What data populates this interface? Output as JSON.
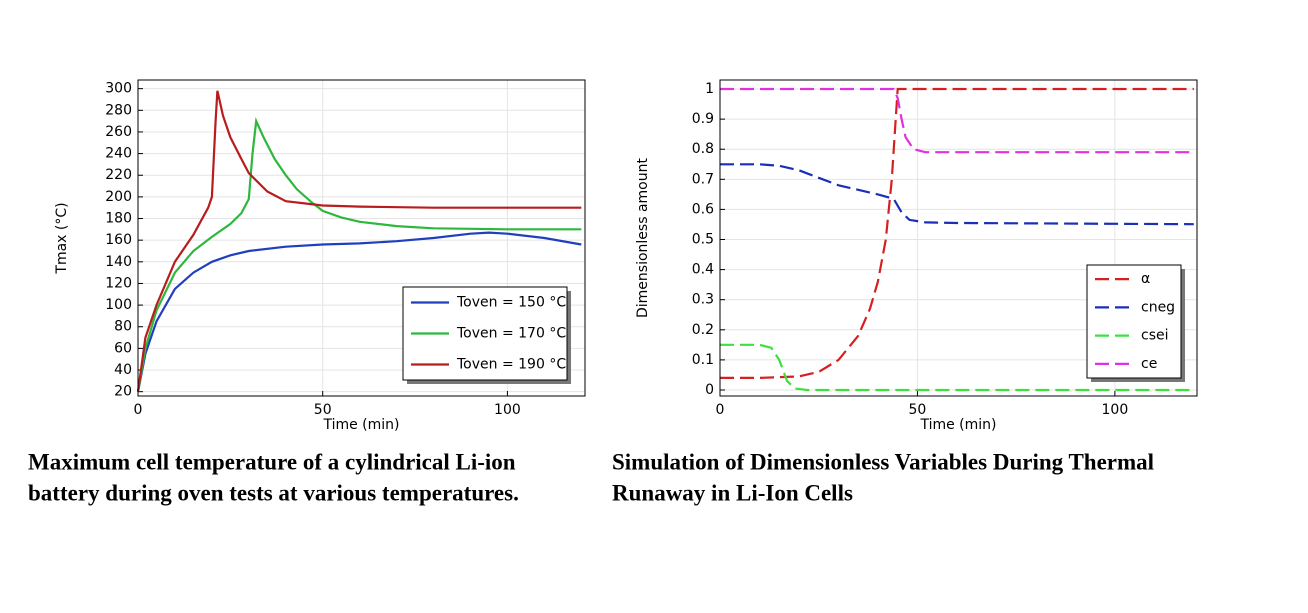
{
  "chart_data": [
    {
      "type": "line",
      "ylabel": "Tmax (°C)",
      "xlabel": "Time (min)",
      "caption": [
        "Maximum cell temperature of a cylindrical Li-ion",
        "battery during oven tests at various temperatures."
      ],
      "xlim": [
        0,
        121
      ],
      "xticks": [
        0,
        50,
        100
      ],
      "ylim": [
        16,
        308
      ],
      "yticks": [
        20,
        40,
        60,
        80,
        100,
        120,
        140,
        160,
        180,
        200,
        220,
        240,
        260,
        280,
        300
      ],
      "grid": true,
      "dashed": false,
      "legend": "lower right",
      "series": [
        {
          "name": "Toven = 150 °C",
          "color": "#1f3fbf",
          "x": [
            0,
            2,
            5,
            10,
            15,
            20,
            25,
            30,
            40,
            50,
            60,
            70,
            80,
            90,
            95,
            100,
            110,
            120
          ],
          "values": [
            20,
            55,
            85,
            115,
            130,
            140,
            146,
            150,
            154,
            156,
            157,
            159,
            162,
            166,
            167,
            166,
            162,
            156
          ]
        },
        {
          "name": "Toven = 170 °C",
          "color": "#2db83d",
          "x": [
            0,
            2,
            5,
            10,
            15,
            20,
            25,
            28,
            30,
            31,
            32,
            34,
            37,
            40,
            43,
            47,
            50,
            55,
            60,
            70,
            80,
            100,
            120
          ],
          "values": [
            20,
            60,
            95,
            130,
            150,
            163,
            175,
            185,
            198,
            240,
            270,
            255,
            235,
            220,
            207,
            195,
            187,
            181,
            177,
            173,
            171,
            170,
            170
          ]
        },
        {
          "name": "Toven = 190 °C",
          "color": "#b81c1c",
          "x": [
            0,
            2,
            5,
            10,
            15,
            19,
            20,
            21,
            21.5,
            23,
            25,
            28,
            30,
            35,
            40,
            50,
            60,
            80,
            120
          ],
          "values": [
            20,
            70,
            100,
            140,
            165,
            190,
            200,
            270,
            298,
            275,
            255,
            235,
            222,
            205,
            196,
            192,
            191,
            190,
            190
          ]
        }
      ]
    },
    {
      "type": "line",
      "ylabel": "Dimensionless amount",
      "xlabel": "Time (min)",
      "caption": [
        "Simulation of Dimensionless Variables During Thermal",
        "Runaway in Li-Ion Cells"
      ],
      "xlim": [
        0,
        120.8
      ],
      "xticks": [
        0,
        50,
        100
      ],
      "ylim": [
        -0.02,
        1.03
      ],
      "yticks": [
        0,
        0.1,
        0.2,
        0.3,
        0.4,
        0.5,
        0.6,
        0.7,
        0.8,
        0.9,
        1
      ],
      "grid": true,
      "dashed": true,
      "legend": "lower right",
      "series": [
        {
          "name": "α",
          "color": "#d42020",
          "x": [
            0,
            10,
            20,
            25,
            30,
            35,
            38,
            40,
            42,
            43.5,
            44.5,
            45,
            120
          ],
          "values": [
            0.04,
            0.04,
            0.045,
            0.06,
            0.1,
            0.18,
            0.27,
            0.36,
            0.5,
            0.7,
            0.9,
            1,
            1
          ]
        },
        {
          "name": "cneg",
          "color": "#1a2fb8",
          "x": [
            0,
            10,
            15,
            20,
            25,
            30,
            35,
            40,
            44,
            46,
            48,
            52,
            60,
            120
          ],
          "values": [
            0.75,
            0.75,
            0.745,
            0.73,
            0.705,
            0.68,
            0.665,
            0.65,
            0.635,
            0.59,
            0.565,
            0.557,
            0.555,
            0.551
          ]
        },
        {
          "name": "csei",
          "color": "#3ee03e",
          "x": [
            0,
            10,
            13,
            15,
            17,
            19,
            22,
            120
          ],
          "values": [
            0.15,
            0.15,
            0.14,
            0.1,
            0.03,
            0.005,
            0,
            0
          ]
        },
        {
          "name": "ce",
          "color": "#e030e0",
          "x": [
            0,
            44,
            45,
            46,
            47,
            49,
            52,
            120
          ],
          "values": [
            1,
            1,
            0.97,
            0.9,
            0.84,
            0.8,
            0.79,
            0.79
          ]
        }
      ]
    }
  ]
}
